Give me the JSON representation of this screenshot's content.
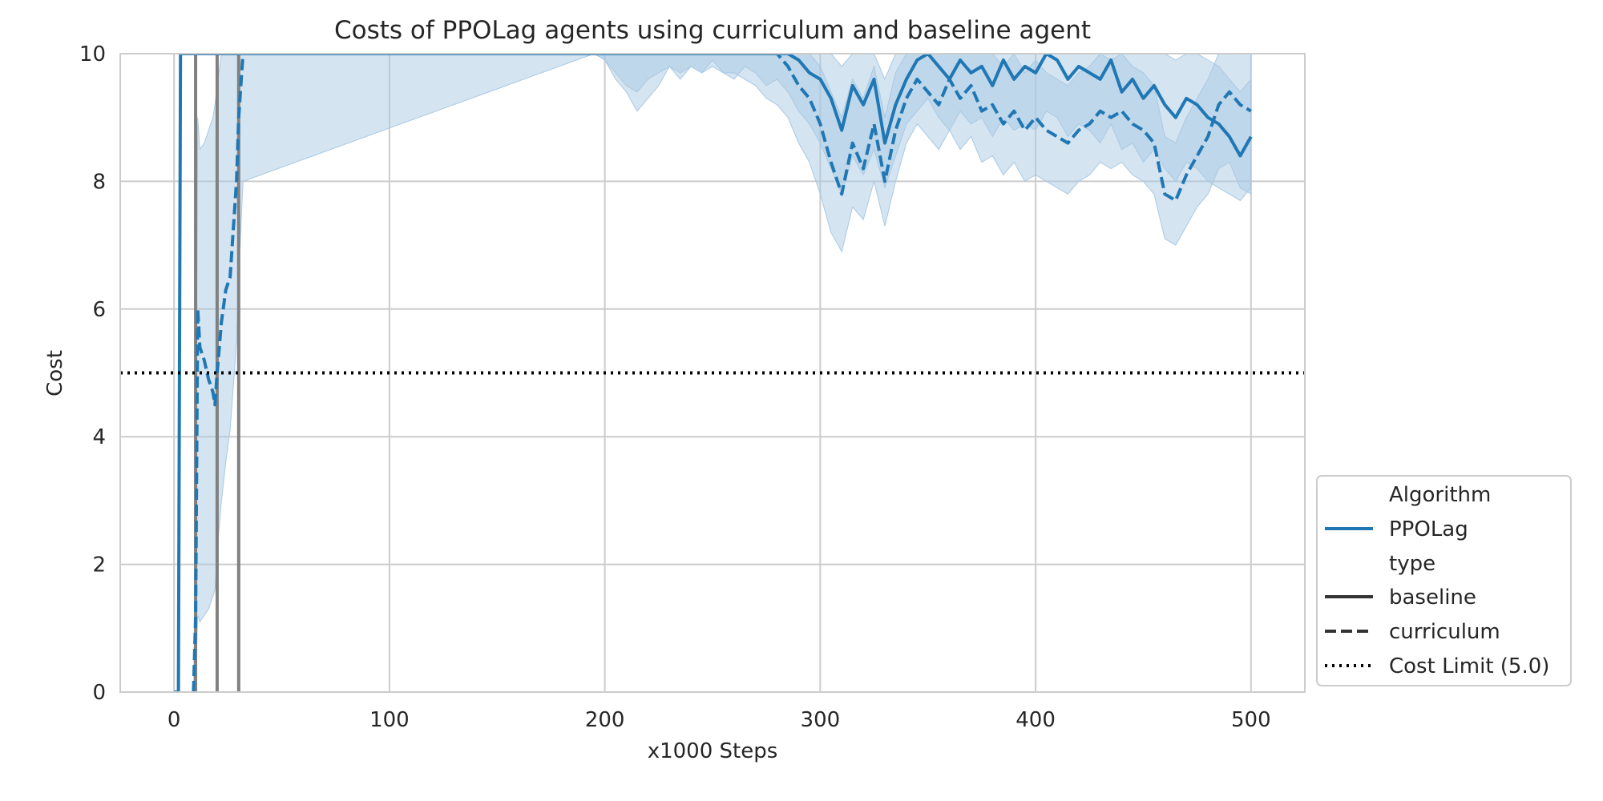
{
  "chart_data": {
    "type": "line",
    "title": "Costs of PPOLag agents using curriculum and baseline agent",
    "xlabel": "x1000 Steps",
    "ylabel": "Cost",
    "xlim": [
      -25,
      525
    ],
    "ylim": [
      0,
      10
    ],
    "xticks": [
      0,
      100,
      200,
      300,
      400,
      500
    ],
    "yticks": [
      0,
      2,
      4,
      6,
      8,
      10
    ],
    "grid": true,
    "legend_position": "lower-right-outside",
    "colors": {
      "series": "#1f77b4",
      "band": "#a9c9e3",
      "limit": "#000000",
      "vline": "#808080",
      "grid": "#cccccc",
      "legend_style": "#333333"
    },
    "legend": {
      "group_titles": [
        "Algorithm",
        "type"
      ],
      "algorithm": "PPOLag",
      "types": [
        "baseline",
        "curriculum"
      ],
      "limit_label": "Cost Limit (5.0)"
    },
    "cost_limit": 5.0,
    "vertical_lines": [
      10,
      20,
      30
    ],
    "series": [
      {
        "name": "baseline",
        "style": "solid",
        "x": [
          0,
          2,
          2.5,
          3,
          195,
          200,
          205,
          210,
          215,
          220,
          225,
          230,
          235,
          240,
          245,
          250,
          255,
          260,
          265,
          270,
          275,
          280,
          285,
          290,
          295,
          300,
          305,
          310,
          315,
          320,
          325,
          330,
          335,
          340,
          345,
          350,
          355,
          360,
          365,
          370,
          375,
          380,
          385,
          390,
          395,
          400,
          405,
          410,
          415,
          420,
          425,
          430,
          435,
          440,
          445,
          450,
          455,
          460,
          465,
          470,
          475,
          480,
          485,
          490,
          495,
          500
        ],
        "y": [
          0,
          0,
          5,
          10,
          10,
          10,
          10,
          10,
          10,
          10,
          10,
          10,
          10,
          10,
          10,
          10,
          10,
          10,
          10,
          10,
          10,
          10,
          10,
          9.9,
          9.7,
          9.6,
          9.3,
          8.8,
          9.5,
          9.2,
          9.6,
          8.6,
          9.2,
          9.6,
          9.9,
          10,
          9.8,
          9.6,
          9.9,
          9.7,
          9.8,
          9.5,
          9.9,
          9.6,
          9.8,
          9.7,
          10,
          9.9,
          9.6,
          9.8,
          9.7,
          9.6,
          9.9,
          9.4,
          9.6,
          9.3,
          9.5,
          9.2,
          9.0,
          9.3,
          9.2,
          9.0,
          8.9,
          8.7,
          8.4,
          8.7
        ],
        "lower": [
          0,
          0,
          5,
          10,
          10,
          9.9,
          9.6,
          9.4,
          9.1,
          9.3,
          9.5,
          9.8,
          9.6,
          9.8,
          9.7,
          9.9,
          9.7,
          9.6,
          9.8,
          9.7,
          9.5,
          9.6,
          9.4,
          9.1,
          8.9,
          8.6,
          8.2,
          7.8,
          8.4,
          8.1,
          8.5,
          7.9,
          8.4,
          8.9,
          9.1,
          9.3,
          9.0,
          8.8,
          9.1,
          8.9,
          9.0,
          8.7,
          9.0,
          8.8,
          8.9,
          8.8,
          9.1,
          9.0,
          8.7,
          8.9,
          8.8,
          8.6,
          8.9,
          8.5,
          8.6,
          8.3,
          8.5,
          8.2,
          8.0,
          8.3,
          8.2,
          8.0,
          7.9,
          7.8,
          7.7,
          7.9
        ],
        "upper": [
          0,
          0,
          5,
          10,
          10,
          10,
          10,
          10,
          10,
          10,
          10,
          10,
          10,
          10,
          10,
          10,
          10,
          10,
          10,
          10,
          10,
          10,
          10,
          10,
          10,
          10,
          10,
          9.8,
          10,
          10,
          10,
          9.6,
          10,
          10,
          10,
          10,
          10,
          10,
          10,
          10,
          10,
          10,
          10,
          10,
          10,
          10,
          10,
          10,
          10,
          10,
          10,
          10,
          10,
          10,
          10,
          10,
          10,
          10,
          9.9,
          10,
          10,
          9.9,
          9.8,
          9.6,
          9.4,
          9.6
        ]
      },
      {
        "name": "curriculum",
        "style": "dashed",
        "x": [
          9,
          10,
          11,
          12,
          14,
          16,
          18,
          19,
          20,
          22,
          24,
          26,
          28,
          29,
          30,
          32,
          195,
          200,
          205,
          210,
          215,
          220,
          225,
          230,
          235,
          240,
          245,
          250,
          255,
          260,
          265,
          270,
          275,
          280,
          285,
          290,
          295,
          300,
          305,
          310,
          315,
          320,
          325,
          330,
          335,
          340,
          345,
          350,
          355,
          360,
          365,
          370,
          375,
          380,
          385,
          390,
          395,
          400,
          405,
          410,
          415,
          420,
          425,
          430,
          435,
          440,
          445,
          450,
          455,
          460,
          465,
          470,
          475,
          480,
          485,
          490,
          495,
          500
        ],
        "y": [
          0,
          1.2,
          6.0,
          5.4,
          5.2,
          4.9,
          4.7,
          4.5,
          5.0,
          5.8,
          6.3,
          6.5,
          7.5,
          8.0,
          9.0,
          10,
          10,
          10,
          10,
          10,
          10,
          10,
          10,
          10,
          10,
          10,
          10,
          10,
          10,
          10,
          10,
          10,
          10,
          10,
          9.8,
          9.5,
          9.3,
          8.9,
          8.3,
          7.8,
          8.6,
          8.2,
          8.9,
          8.0,
          8.8,
          9.3,
          9.6,
          9.4,
          9.2,
          9.6,
          9.3,
          9.5,
          9.1,
          9.2,
          8.9,
          9.1,
          8.8,
          9.0,
          8.8,
          8.7,
          8.6,
          8.8,
          8.9,
          9.1,
          9.0,
          9.1,
          8.9,
          8.8,
          8.6,
          7.8,
          7.7,
          8.1,
          8.4,
          8.7,
          9.2,
          9.4,
          9.2,
          9.1
        ],
        "lower": [
          0,
          0.2,
          1.2,
          1.1,
          1.2,
          1.3,
          1.5,
          1.6,
          2.2,
          3.0,
          3.6,
          4.1,
          5.0,
          5.5,
          6.5,
          8.0,
          10,
          9.9,
          9.7,
          9.5,
          9.4,
          9.6,
          9.7,
          9.8,
          9.7,
          9.8,
          9.7,
          9.8,
          9.7,
          9.7,
          9.6,
          9.5,
          9.3,
          9.2,
          9.0,
          8.6,
          8.3,
          7.8,
          7.2,
          6.9,
          7.6,
          7.4,
          8.0,
          7.3,
          8.0,
          8.6,
          8.9,
          8.7,
          8.5,
          8.8,
          8.5,
          8.7,
          8.3,
          8.4,
          8.1,
          8.3,
          8.0,
          8.1,
          8.0,
          7.9,
          7.8,
          8.0,
          8.1,
          8.3,
          8.2,
          8.3,
          8.1,
          8.0,
          7.8,
          7.1,
          7.0,
          7.3,
          7.6,
          7.8,
          8.2,
          8.3,
          7.9,
          7.8
        ],
        "upper": [
          0,
          2.5,
          9.0,
          8.5,
          8.6,
          8.8,
          9.0,
          9.2,
          9.5,
          10,
          10,
          10,
          10,
          10,
          10,
          10,
          10,
          10,
          10,
          10,
          10,
          10,
          10,
          10,
          10,
          10,
          10,
          10,
          10,
          10,
          10,
          10,
          10,
          10,
          10,
          10,
          10,
          9.8,
          9.4,
          9.0,
          9.6,
          9.3,
          9.8,
          9.0,
          9.7,
          10,
          10,
          10,
          10,
          10,
          10,
          10,
          10,
          10,
          9.8,
          10,
          9.7,
          9.9,
          9.7,
          9.6,
          9.5,
          9.7,
          9.8,
          10,
          9.9,
          10,
          9.8,
          9.7,
          9.5,
          8.7,
          8.6,
          9.0,
          9.3,
          9.6,
          10,
          10,
          10,
          10
        ]
      }
    ]
  }
}
